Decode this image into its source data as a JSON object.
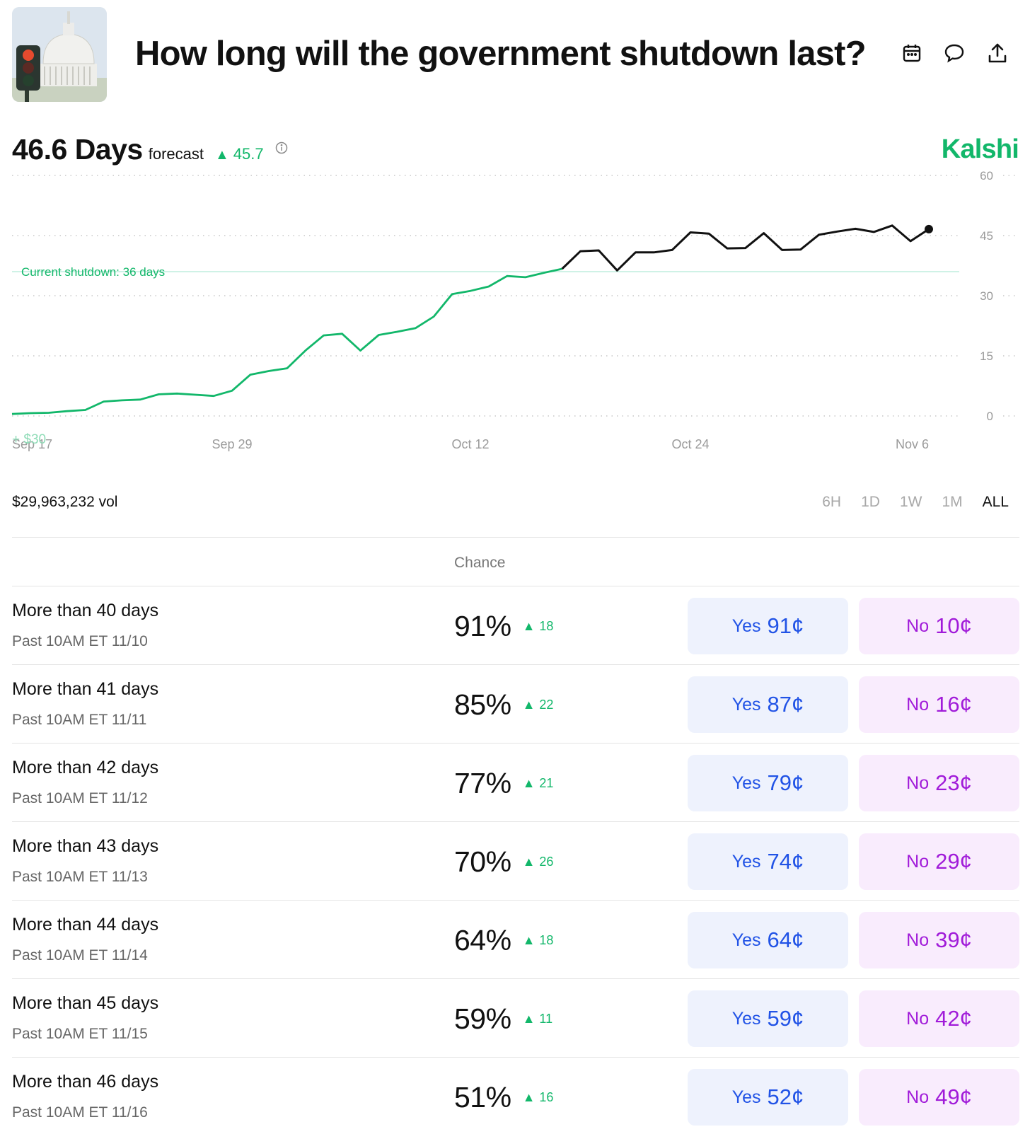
{
  "header": {
    "title": "How long will the government shutdown last?",
    "icons": [
      "calendar-icon",
      "comment-icon",
      "share-icon"
    ]
  },
  "forecast": {
    "value": "46.6 Days",
    "label": "forecast",
    "delta": "45.7",
    "brand": "Kalshi"
  },
  "chart_data": {
    "type": "line",
    "y_ticks": [
      "60",
      "45",
      "30",
      "15",
      "0"
    ],
    "ylim": [
      0,
      60
    ],
    "x_ticks": [
      "Sep 17",
      "Sep 29",
      "Oct 12",
      "Oct 24",
      "Nov 6"
    ],
    "grid": true,
    "reference_line": {
      "label": "Current shutdown: 36 days",
      "value": 36
    },
    "ghost_label": "+ $30",
    "colors": {
      "past": "#12b76a",
      "recent": "#111111",
      "reference": "#bfeedd"
    },
    "series": [
      {
        "x": [
          "Sep 17",
          "Sep 18",
          "Sep 19",
          "Sep 20",
          "Sep 21",
          "Sep 22",
          "Sep 23",
          "Sep 24",
          "Sep 25",
          "Sep 26",
          "Sep 27",
          "Sep 28",
          "Sep 29",
          "Sep 30",
          "Oct 1",
          "Oct 2",
          "Oct 3",
          "Oct 4",
          "Oct 5",
          "Oct 6",
          "Oct 7",
          "Oct 8",
          "Oct 9",
          "Oct 10",
          "Oct 11",
          "Oct 12",
          "Oct 13",
          "Oct 14",
          "Oct 15",
          "Oct 16",
          "Oct 17",
          "Oct 18",
          "Oct 19",
          "Oct 20",
          "Oct 21",
          "Oct 22",
          "Oct 23",
          "Oct 24",
          "Oct 25",
          "Oct 26",
          "Oct 27",
          "Oct 28",
          "Oct 29",
          "Oct 30",
          "Oct 31",
          "Nov 1",
          "Nov 2",
          "Nov 3",
          "Nov 4",
          "Nov 5",
          "Nov 6"
        ],
        "values": [
          0.5,
          0.7,
          0.8,
          1.2,
          1.5,
          3.6,
          3.9,
          4.1,
          5.4,
          5.6,
          5.3,
          5.0,
          6.3,
          10.3,
          11.2,
          11.9,
          16.3,
          20.1,
          20.5,
          16.3,
          20.2,
          21.0,
          21.9,
          24.8,
          30.4,
          31.2,
          32.3,
          34.9,
          34.6,
          35.7,
          36.7,
          41.1,
          41.3,
          36.3,
          40.8,
          40.8,
          41.4,
          45.8,
          45.5,
          41.8,
          41.9,
          45.6,
          41.4,
          41.5,
          45.2,
          46.0,
          46.7,
          45.9,
          47.5,
          43.6,
          46.6
        ]
      }
    ]
  },
  "volume": "$29,963,232 vol",
  "ranges": [
    "6H",
    "1D",
    "1W",
    "1M",
    "ALL"
  ],
  "active_range": "ALL",
  "table": {
    "chance_header": "Chance",
    "yes_label": "Yes",
    "no_label": "No",
    "rows": [
      {
        "title": "More than 40 days",
        "sub": "Past 10AM ET 11/10",
        "chance": "91%",
        "change": "18",
        "yes": "91¢",
        "no": "10¢"
      },
      {
        "title": "More than 41 days",
        "sub": "Past 10AM ET 11/11",
        "chance": "85%",
        "change": "22",
        "yes": "87¢",
        "no": "16¢"
      },
      {
        "title": "More than 42 days",
        "sub": "Past 10AM ET 11/12",
        "chance": "77%",
        "change": "21",
        "yes": "79¢",
        "no": "23¢"
      },
      {
        "title": "More than 43 days",
        "sub": "Past 10AM ET 11/13",
        "chance": "70%",
        "change": "26",
        "yes": "74¢",
        "no": "29¢"
      },
      {
        "title": "More than 44 days",
        "sub": "Past 10AM ET 11/14",
        "chance": "64%",
        "change": "18",
        "yes": "64¢",
        "no": "39¢"
      },
      {
        "title": "More than 45 days",
        "sub": "Past 10AM ET 11/15",
        "chance": "59%",
        "change": "11",
        "yes": "59¢",
        "no": "42¢"
      },
      {
        "title": "More than 46 days",
        "sub": "Past 10AM ET 11/16",
        "chance": "51%",
        "change": "16",
        "yes": "52¢",
        "no": "49¢"
      }
    ]
  }
}
